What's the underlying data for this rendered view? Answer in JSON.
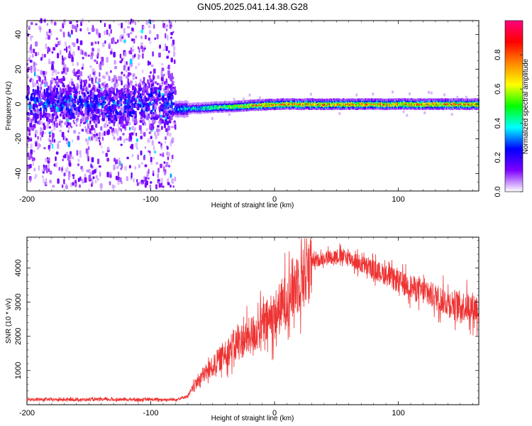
{
  "title": "GN05.2025.041.14.38.G28",
  "chart_data": [
    {
      "type": "heatmap",
      "xlabel": "Height of straight line (km)",
      "ylabel": "Frequency (Hz)",
      "xlim": [
        -200,
        165
      ],
      "ylim": [
        -50,
        48
      ],
      "xticks": [
        -200,
        -100,
        0,
        100
      ],
      "yticks": [
        -40,
        -20,
        0,
        20,
        40
      ],
      "colorbar": {
        "label": "Normalized spectral amplitude",
        "range": [
          0,
          1
        ],
        "ticks": [
          "0.0",
          "0.2",
          "0.4",
          "0.6",
          "0.8"
        ],
        "tick_values": [
          0,
          0.2,
          0.4,
          0.6,
          0.8
        ],
        "colors": [
          "#ffffff",
          "#7d00ff",
          "#0000ff",
          "#00ffff",
          "#00ff00",
          "#ffff00",
          "#ff8800",
          "#ff0000",
          "#ff0080"
        ]
      },
      "regions": [
        {
          "x_range": [
            -200,
            -80
          ],
          "description_values": {
            "freq_spread_hz": 48,
            "core_spread_hz": 8,
            "core_amplitude": 0.25,
            "scatter_amplitude": 0.05
          }
        },
        {
          "x_range": [
            -80,
            165
          ],
          "description_values": {
            "center_hz_at_start": -3,
            "center_hz_at_end": 0,
            "band_halfwidth_hz": 2.5,
            "peak_amplitude": 0.85
          }
        }
      ]
    },
    {
      "type": "line",
      "xlabel": "Height of straight line (km)",
      "ylabel": "SNR (10 * v/v)",
      "xlim": [
        -200,
        165
      ],
      "ylim": [
        0,
        4900
      ],
      "xticks": [
        -200,
        -100,
        0,
        100
      ],
      "yticks": [
        1000,
        2000,
        3000,
        4000
      ],
      "color": "#ee3333",
      "trend": {
        "x": [
          -200,
          -150,
          -100,
          -80,
          -70,
          -60,
          -50,
          -40,
          -30,
          -20,
          -10,
          0,
          10,
          20,
          30,
          40,
          50,
          60,
          70,
          80,
          90,
          100,
          110,
          120,
          130,
          140,
          150,
          160,
          165
        ],
        "y": [
          150,
          150,
          150,
          150,
          250,
          800,
          1100,
          1500,
          1800,
          2000,
          2300,
          2600,
          3100,
          3700,
          4150,
          4300,
          4350,
          4300,
          4100,
          3950,
          3800,
          3600,
          3450,
          3300,
          3150,
          3000,
          2900,
          2850,
          2800
        ]
      }
    }
  ]
}
